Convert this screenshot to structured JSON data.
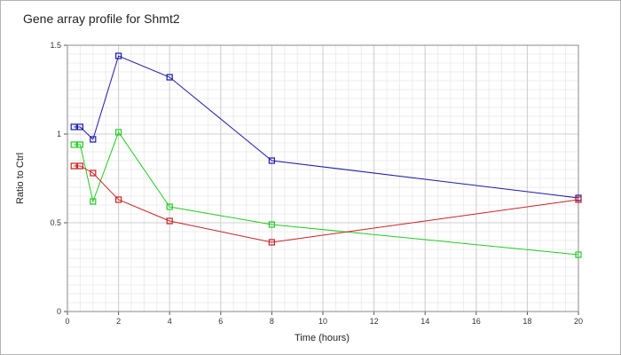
{
  "chart_data": {
    "type": "line",
    "title": "Gene array profile for Shmt2",
    "xlabel": "Time (hours)",
    "ylabel": "Ratio to Ctrl",
    "xlim": [
      0,
      20
    ],
    "ylim": [
      0,
      1.5
    ],
    "x_ticks": [
      "0",
      "2",
      "4",
      "6",
      "8",
      "10",
      "12",
      "14",
      "16",
      "18",
      "20"
    ],
    "y_ticks": [
      "0",
      "0.5",
      "1",
      "1.5"
    ],
    "grid": true,
    "marker": "square",
    "series": [
      {
        "color": "#1a1aaa",
        "x": [
          0.25,
          0.5,
          1,
          2,
          4,
          8,
          20
        ],
        "y": [
          1.04,
          1.04,
          0.97,
          1.44,
          1.32,
          0.85,
          0.64
        ]
      },
      {
        "color": "#22cc22",
        "x": [
          0.25,
          0.5,
          1,
          2,
          4,
          8,
          20
        ],
        "y": [
          0.94,
          0.94,
          0.62,
          1.01,
          0.59,
          0.49,
          0.32
        ]
      },
      {
        "color": "#cc2222",
        "x": [
          0.25,
          0.5,
          1,
          2,
          4,
          8,
          20
        ],
        "y": [
          0.82,
          0.82,
          0.78,
          0.63,
          0.51,
          0.39,
          0.63
        ]
      }
    ]
  }
}
